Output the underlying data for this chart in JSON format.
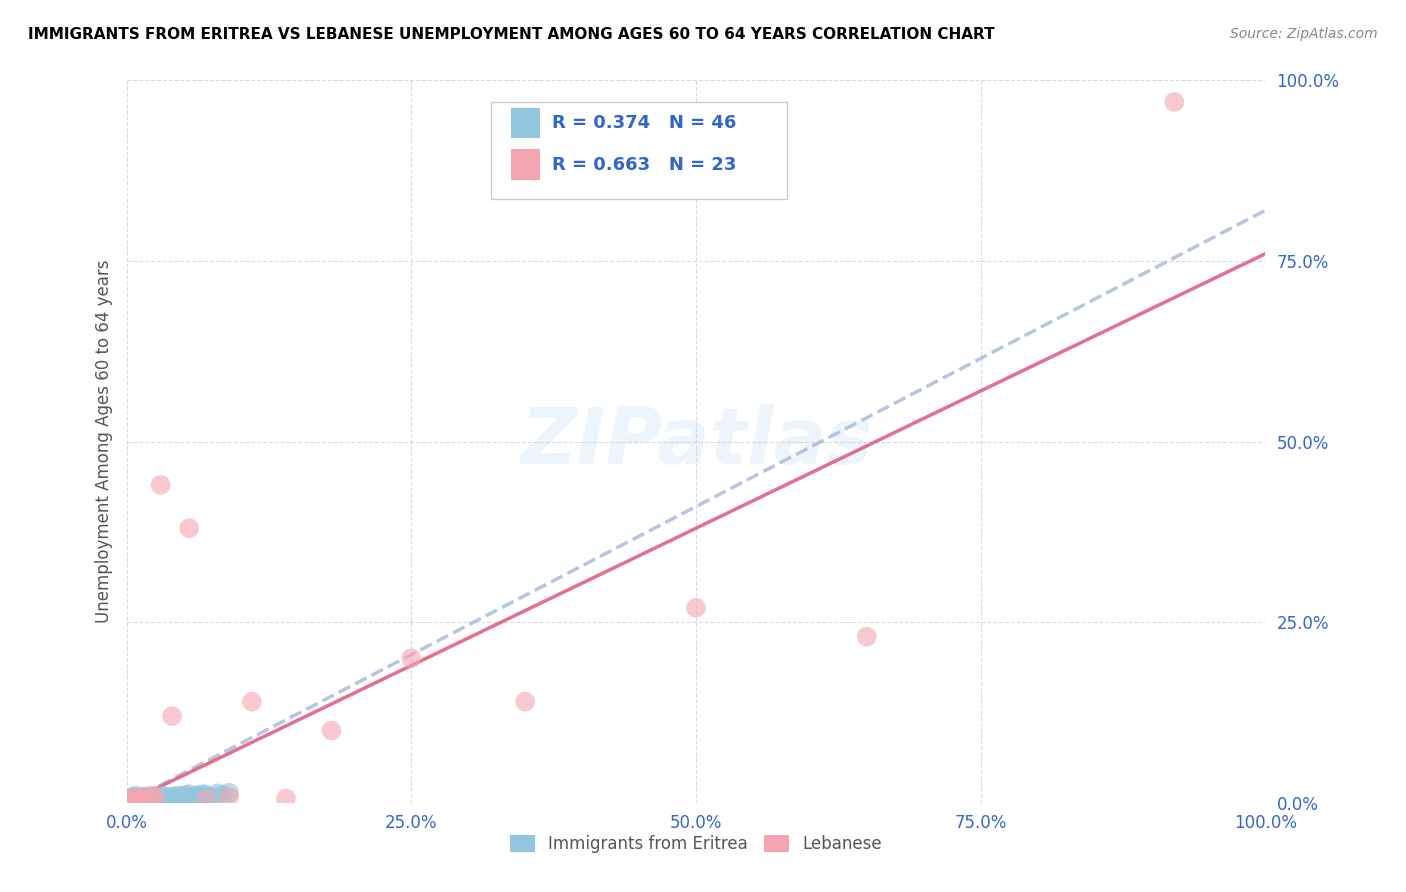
{
  "title": "IMMIGRANTS FROM ERITREA VS LEBANESE UNEMPLOYMENT AMONG AGES 60 TO 64 YEARS CORRELATION CHART",
  "source": "Source: ZipAtlas.com",
  "ylabel": "Unemployment Among Ages 60 to 64 years",
  "xlim": [
    0,
    1
  ],
  "ylim": [
    0,
    1
  ],
  "xticks": [
    0.0,
    0.25,
    0.5,
    0.75,
    1.0
  ],
  "yticks": [
    0.0,
    0.25,
    0.5,
    0.75,
    1.0
  ],
  "xticklabels": [
    "0.0%",
    "25.0%",
    "50.0%",
    "75.0%",
    "100.0%"
  ],
  "yticklabels": [
    "0.0%",
    "25.0%",
    "50.0%",
    "75.0%",
    "100.0%"
  ],
  "legend_R1": "R = 0.374",
  "legend_N1": "N = 46",
  "legend_R2": "R = 0.663",
  "legend_N2": "N = 23",
  "legend_label1": "Immigrants from Eritrea",
  "legend_label2": "Lebanese",
  "color1": "#92C5DE",
  "color2": "#F4A6B0",
  "trendline1_color": "#AABBDD",
  "trendline2_color": "#E06080",
  "watermark": "ZIPatlas",
  "eritrea_x": [
    0.002,
    0.003,
    0.004,
    0.005,
    0.005,
    0.006,
    0.007,
    0.008,
    0.008,
    0.009,
    0.01,
    0.011,
    0.012,
    0.013,
    0.014,
    0.015,
    0.016,
    0.017,
    0.018,
    0.019,
    0.02,
    0.022,
    0.024,
    0.025,
    0.028,
    0.03,
    0.032,
    0.035,
    0.038,
    0.04,
    0.045,
    0.05,
    0.055,
    0.06,
    0.065,
    0.07,
    0.042,
    0.048,
    0.052,
    0.058,
    0.062,
    0.068,
    0.075,
    0.08,
    0.085,
    0.09
  ],
  "eritrea_y": [
    0.005,
    0.003,
    0.006,
    0.004,
    0.008,
    0.005,
    0.003,
    0.006,
    0.01,
    0.004,
    0.005,
    0.008,
    0.004,
    0.007,
    0.003,
    0.006,
    0.009,
    0.005,
    0.007,
    0.004,
    0.006,
    0.008,
    0.005,
    0.009,
    0.006,
    0.007,
    0.01,
    0.008,
    0.006,
    0.009,
    0.01,
    0.008,
    0.012,
    0.009,
    0.011,
    0.01,
    0.007,
    0.009,
    0.011,
    0.008,
    0.01,
    0.012,
    0.009,
    0.013,
    0.011,
    0.014
  ],
  "lebanese_x": [
    0.002,
    0.004,
    0.006,
    0.008,
    0.01,
    0.012,
    0.015,
    0.018,
    0.022,
    0.025,
    0.03,
    0.04,
    0.055,
    0.07,
    0.09,
    0.11,
    0.14,
    0.18,
    0.25,
    0.35,
    0.5,
    0.65,
    0.92
  ],
  "lebanese_y": [
    0.003,
    0.005,
    0.004,
    0.007,
    0.005,
    0.006,
    0.008,
    0.006,
    0.01,
    0.008,
    0.44,
    0.12,
    0.38,
    0.005,
    0.008,
    0.14,
    0.006,
    0.1,
    0.2,
    0.14,
    0.27,
    0.23,
    0.97
  ],
  "trendline1_x0": 0.0,
  "trendline1_y0": 0.0,
  "trendline1_x1": 1.0,
  "trendline1_y1": 0.82,
  "trendline2_x0": 0.0,
  "trendline2_y0": 0.0,
  "trendline2_x1": 1.0,
  "trendline2_y1": 0.76
}
